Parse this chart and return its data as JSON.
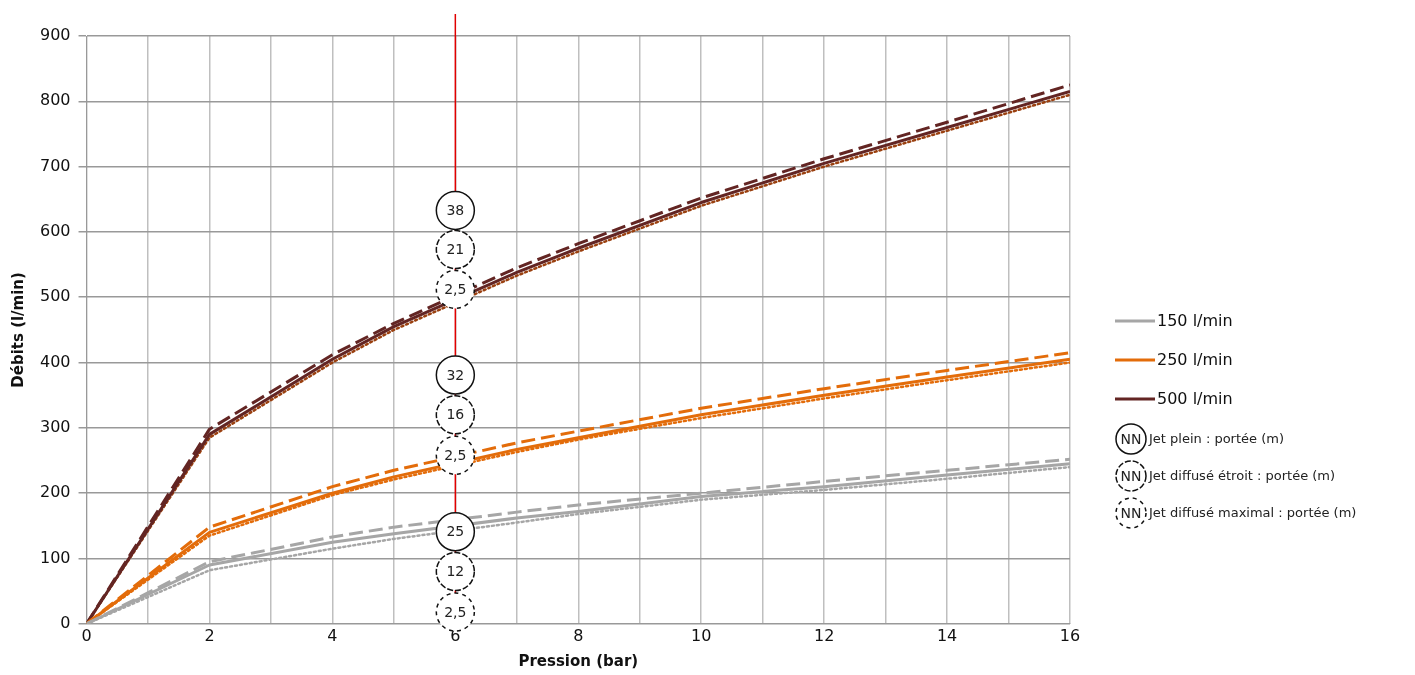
{
  "chart_data": {
    "type": "line",
    "xlabel": "Pression (bar)",
    "ylabel": "Débits (l/min)",
    "x": [
      0,
      2,
      4,
      5,
      7,
      8,
      10,
      12,
      14,
      16
    ],
    "xlim": [
      0,
      16
    ],
    "xticks": [
      0,
      2,
      4,
      6,
      8,
      10,
      12,
      14,
      16
    ],
    "ylim": [
      0,
      900
    ],
    "yticks": [
      0,
      100,
      200,
      300,
      400,
      500,
      600,
      700,
      800,
      900
    ],
    "grid": true,
    "legend": "right",
    "marker": "none",
    "series": [
      {
        "name": "150 l/min",
        "color": "#a6a6a6",
        "line_style": "solid",
        "values": [
          0,
          90,
          125,
          138,
          162,
          172,
          195,
          210,
          228,
          245
        ]
      },
      {
        "color": "#a6a6a6",
        "line_style": "dashed",
        "values": [
          0,
          95,
          133,
          148,
          171,
          182,
          200,
          218,
          235,
          252
        ]
      },
      {
        "color": "#a6a6a6",
        "line_style": "dotted",
        "values": [
          0,
          82,
          115,
          130,
          155,
          168,
          190,
          205,
          222,
          240
        ]
      },
      {
        "name": "250 l/min",
        "color": "#e36c0a",
        "line_style": "solid",
        "values": [
          0,
          140,
          200,
          225,
          267,
          285,
          320,
          350,
          378,
          405
        ]
      },
      {
        "color": "#e36c0a",
        "line_style": "dashed",
        "values": [
          0,
          148,
          210,
          235,
          277,
          295,
          330,
          360,
          388,
          415
        ]
      },
      {
        "color": "#e36c0a",
        "line_style": "dotted",
        "values": [
          0,
          135,
          197,
          221,
          263,
          282,
          315,
          345,
          373,
          400
        ]
      },
      {
        "name": "500 l/min",
        "color": "#632523",
        "line_style": "solid",
        "values": [
          0,
          290,
          405,
          455,
          538,
          575,
          645,
          705,
          760,
          815
        ]
      },
      {
        "color": "#632523",
        "line_style": "dashed",
        "values": [
          0,
          298,
          412,
          460,
          545,
          582,
          652,
          712,
          768,
          825
        ]
      },
      {
        "color": "#9a4010",
        "line_style": "dotted",
        "values": [
          0,
          285,
          400,
          450,
          533,
          570,
          640,
          700,
          755,
          810
        ]
      }
    ],
    "ref_lines": [
      {
        "axis": "x",
        "value": 6,
        "color": "#e00000",
        "line_style": "solid"
      }
    ],
    "annotations": [
      {
        "text": "38",
        "y": 633
      },
      {
        "text": "21",
        "y": 573
      },
      {
        "text": "2,5",
        "y": 512
      },
      {
        "text": "32",
        "y": 381
      },
      {
        "text": "16",
        "y": 320
      },
      {
        "text": "2,5",
        "y": 258
      },
      {
        "text": "25",
        "y": 141
      },
      {
        "text": "12",
        "y": 80
      },
      {
        "text": "2,5",
        "y": 18
      },
      "NN",
      "Jet plein : portée (m)",
      "NN",
      "Jet diffusé étroit : portée (m)",
      "NN",
      "Jet diffusé maximal : portée (m)"
    ]
  }
}
